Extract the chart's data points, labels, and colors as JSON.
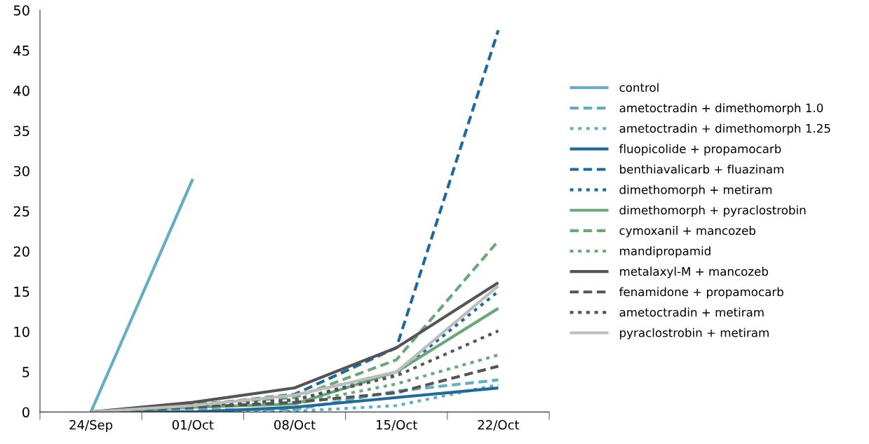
{
  "chart_data": {
    "type": "line",
    "categories": [
      "24/Sep",
      "01/Oct",
      "08/Oct",
      "15/Oct",
      "22/Oct"
    ],
    "ylim": [
      0,
      50
    ],
    "yticks": [
      0,
      5,
      10,
      15,
      20,
      25,
      30,
      35,
      40,
      45,
      50
    ],
    "grid": false,
    "legend": "right",
    "marker": "none",
    "series": [
      {
        "name": "control",
        "color": "#62aec4",
        "line_style": "solid",
        "values": [
          0,
          29,
          null,
          null,
          null
        ]
      },
      {
        "name": "ametoctradin + dimethomorph 1.0",
        "color": "#62aec4",
        "line_style": "dashed",
        "values": [
          0,
          0.3,
          0.3,
          2.6,
          4.0
        ]
      },
      {
        "name": "ametoctradin + dimethomorph 1.25",
        "color": "#62aec4",
        "line_style": "dotted",
        "values": [
          0,
          0.1,
          0.1,
          0.8,
          3.4
        ]
      },
      {
        "name": "fluopicolide + propamocarb",
        "color": "#1f6a9a",
        "line_style": "solid",
        "values": [
          0,
          0,
          0.6,
          1.8,
          3.0
        ]
      },
      {
        "name": "benthiavalicarb + fluazinam",
        "color": "#1f6a9a",
        "line_style": "dashed",
        "values": [
          0,
          0.8,
          2.2,
          8,
          47.5
        ]
      },
      {
        "name": "dimethomorph + metiram",
        "color": "#1f6a9a",
        "line_style": "dotted",
        "values": [
          0,
          0.8,
          1.5,
          4.8,
          15
        ]
      },
      {
        "name": "dimethomorph + pyraclostrobin",
        "color": "#6aa87a",
        "line_style": "solid",
        "values": [
          0,
          0.6,
          1.0,
          5,
          12.9
        ]
      },
      {
        "name": "cymoxanil + mancozeb",
        "color": "#6aa87a",
        "line_style": "dashed",
        "values": [
          0,
          1.0,
          1.8,
          6.5,
          21.3
        ]
      },
      {
        "name": "mandipropamid",
        "color": "#6aa87a",
        "line_style": "dotted",
        "values": [
          0,
          0.8,
          1.0,
          3.5,
          7.1
        ]
      },
      {
        "name": "metalaxyl-M + mancozeb",
        "color": "#555555",
        "line_style": "solid",
        "values": [
          0,
          1.2,
          3.0,
          8,
          16.1
        ]
      },
      {
        "name": "fenamidone + propamocarb",
        "color": "#555555",
        "line_style": "dashed",
        "values": [
          0,
          0.6,
          1.2,
          2.4,
          5.7
        ]
      },
      {
        "name": "ametoctradin + metiram",
        "color": "#555555",
        "line_style": "dotted",
        "values": [
          0,
          0.8,
          1.5,
          4.5,
          10.1
        ]
      },
      {
        "name": "pyraclostrobin + metiram",
        "color": "#bdbdbd",
        "line_style": "solid",
        "values": [
          0,
          0.8,
          2.1,
          5,
          15.7
        ]
      }
    ]
  }
}
